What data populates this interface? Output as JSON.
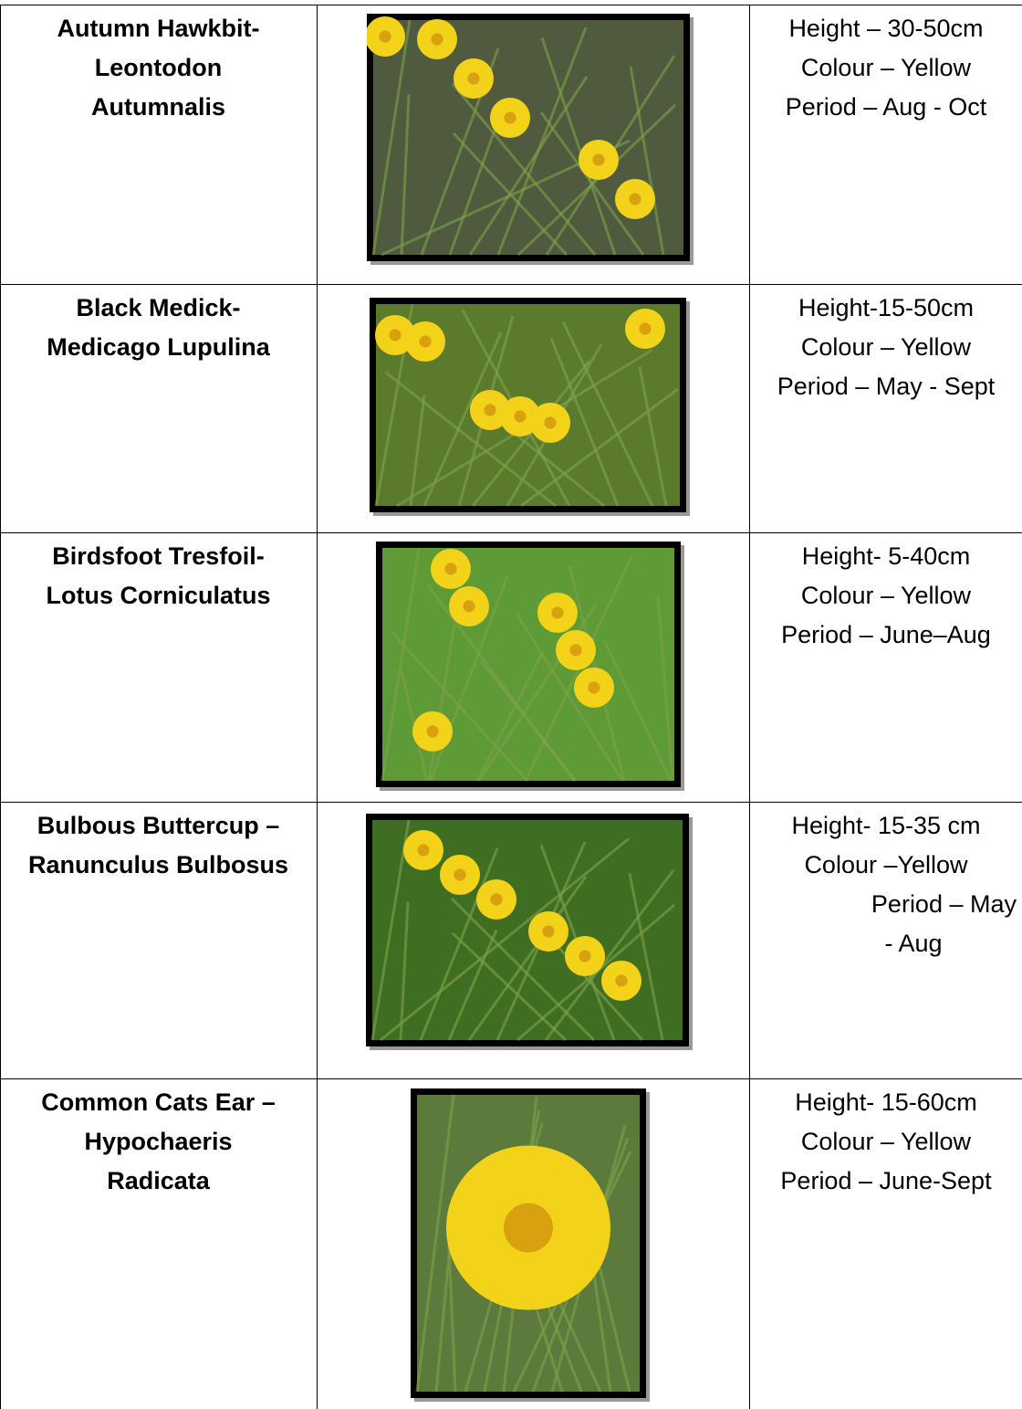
{
  "table": {
    "rows": [
      {
        "name": [
          "Autumn Hawkbit-",
          "Leontodon",
          "Autumnalis"
        ],
        "details": [
          "Height – 30-50cm",
          "Colour – Yellow",
          "Period – Aug - Oct"
        ]
      },
      {
        "name": [
          "Black Medick-",
          "Medicago Lupulina"
        ],
        "details": [
          "Height-15-50cm",
          "Colour – Yellow",
          "Period – May - Sept"
        ]
      },
      {
        "name": [
          "Birdsfoot Tresfoil-",
          "Lotus Corniculatus"
        ],
        "details": [
          "Height- 5-40cm",
          "Colour – Yellow",
          "Period – June–Aug"
        ]
      },
      {
        "name": [
          "Bulbous Buttercup –",
          "Ranunculus Bulbosus"
        ],
        "details": [
          "Height- 15-35 cm",
          "Colour –Yellow",
          "Period – May",
          "- Aug"
        ]
      },
      {
        "name": [
          "Common Cats Ear –",
          "Hypochaeris",
          "Radicata"
        ],
        "details": [
          "Height- 15-60cm",
          "Colour – Yellow",
          "Period – June-Sept"
        ]
      }
    ]
  }
}
